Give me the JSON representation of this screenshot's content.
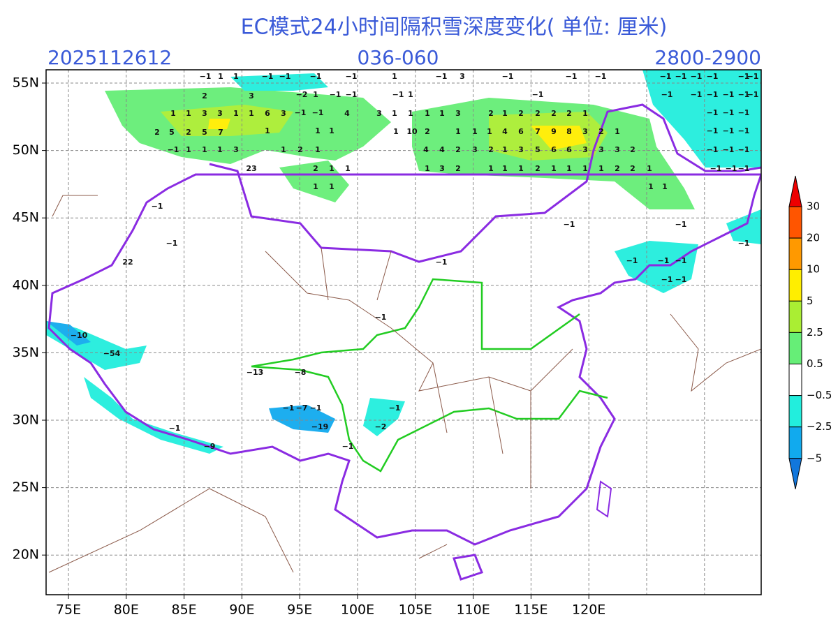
{
  "title": "EC模式24小时间隔积雪深度变化( 单位: 厘米)",
  "header": {
    "init_time": "2025112612",
    "lead_hours": "036-060",
    "run": "2800-2900"
  },
  "lat_labels": [
    "55N",
    "50N",
    "45N",
    "40N",
    "35N",
    "30N",
    "25N",
    "20N"
  ],
  "lon_labels": [
    "75E",
    "80E",
    "85E",
    "90E",
    "95E",
    "100E",
    "105E",
    "110E",
    "115E",
    "120E"
  ],
  "colorbar": {
    "ticks": [
      30,
      20,
      10,
      5,
      2.5,
      0.5,
      -0.5,
      -2.5,
      -5
    ]
  },
  "annotations": [
    -1,
    1,
    1,
    -1,
    -1,
    -1,
    -1,
    1,
    -1,
    3,
    -1,
    -1,
    -1,
    2,
    3,
    -2,
    1,
    -1,
    -1,
    -1,
    1,
    -1,
    1,
    1,
    3,
    3,
    1,
    1,
    6,
    3,
    -1,
    -1,
    4,
    3,
    1,
    1,
    1,
    1,
    3,
    2,
    1,
    2,
    2,
    2,
    2,
    1,
    2,
    5,
    2,
    5,
    7,
    1,
    1,
    1,
    1,
    10,
    2,
    1,
    1,
    1,
    4,
    6,
    7,
    9,
    8,
    3,
    2,
    1,
    -1,
    1,
    1,
    1,
    3,
    1,
    2,
    1,
    4,
    4,
    2,
    3,
    2,
    1,
    3,
    5,
    6,
    6,
    3,
    3,
    3,
    2,
    23,
    2,
    1,
    1,
    1,
    3,
    2,
    1,
    1,
    1,
    2,
    1,
    1,
    1,
    1,
    2,
    2,
    1,
    1,
    1,
    1,
    1,
    -1,
    -1,
    -1,
    -1,
    -1,
    -1,
    -1,
    -1,
    -1,
    -1,
    -1,
    -1,
    -1,
    -1,
    -1,
    -1,
    -1,
    -1,
    -1,
    -1,
    -1,
    -1,
    -1,
    -1,
    -1,
    -1,
    -1,
    -1,
    -1,
    22,
    -1,
    -1,
    -1,
    -1,
    -1,
    -1,
    -1,
    -10,
    -54,
    -13,
    -8,
    -1,
    -7,
    -1,
    -1,
    -19,
    -2,
    -1,
    -9,
    -1
  ]
}
